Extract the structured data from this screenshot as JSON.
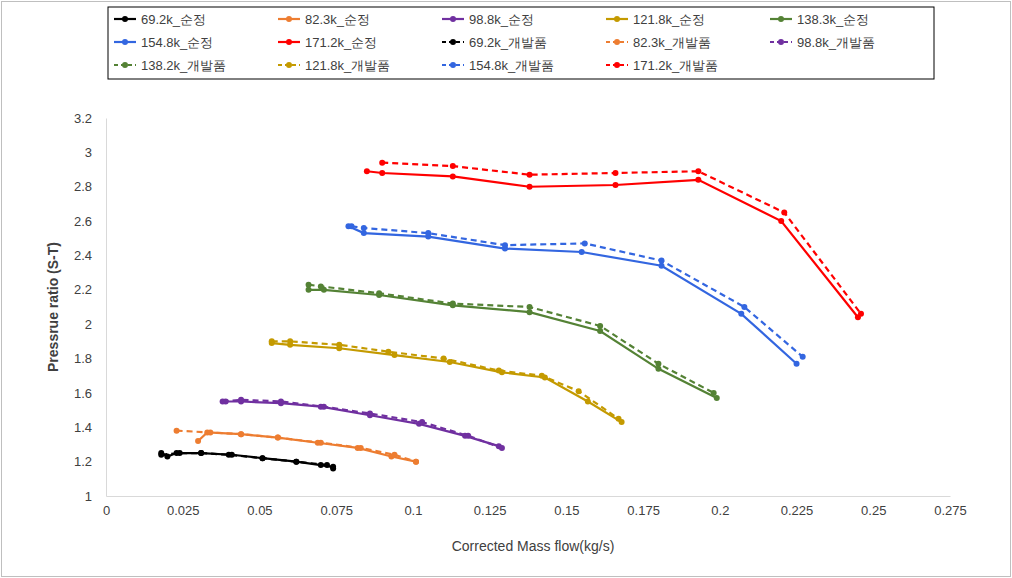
{
  "chart_data": {
    "type": "line",
    "x_label": "Corrected Mass flow(kg/s)",
    "y_label": "Pressrue ratio (S-T)",
    "xlim": [
      0,
      0.275
    ],
    "xticks": [
      0,
      0.025,
      0.05,
      0.075,
      0.1,
      0.125,
      0.15,
      0.175,
      0.2,
      0.225,
      0.25,
      0.275
    ],
    "ylim": [
      1,
      3.2
    ],
    "yticks": [
      1,
      1.2,
      1.4,
      1.6,
      1.8,
      2,
      2.2,
      2.4,
      2.6,
      2.8,
      3,
      3.2
    ],
    "grid": false,
    "legend": "top",
    "marker": "circle",
    "series": [
      {
        "name": "69.2k_순정",
        "color": "#000000",
        "line_style": "solid",
        "x": [
          0.018,
          0.02,
          0.023,
          0.031,
          0.041,
          0.051,
          0.062,
          0.07,
          0.074
        ],
        "values": [
          1.25,
          1.23,
          1.25,
          1.25,
          1.24,
          1.22,
          1.2,
          1.18,
          1.17
        ]
      },
      {
        "name": "82.3k_순정",
        "color": "#ed7d31",
        "line_style": "solid",
        "x": [
          0.03,
          0.033,
          0.044,
          0.056,
          0.069,
          0.082,
          0.093,
          0.101
        ],
        "values": [
          1.32,
          1.37,
          1.36,
          1.34,
          1.31,
          1.28,
          1.23,
          1.2
        ]
      },
      {
        "name": "98.8k_순정",
        "color": "#7030a0",
        "line_style": "solid",
        "x": [
          0.039,
          0.044,
          0.057,
          0.07,
          0.086,
          0.102,
          0.117,
          0.128
        ],
        "values": [
          1.55,
          1.55,
          1.54,
          1.52,
          1.47,
          1.42,
          1.35,
          1.29
        ]
      },
      {
        "name": "121.8k_순정",
        "color": "#c49a00",
        "line_style": "solid",
        "x": [
          0.054,
          0.06,
          0.076,
          0.094,
          0.112,
          0.129,
          0.143,
          0.157,
          0.168
        ],
        "values": [
          1.89,
          1.88,
          1.86,
          1.82,
          1.78,
          1.72,
          1.69,
          1.55,
          1.43
        ]
      },
      {
        "name": "138.3k_순정",
        "color": "#548235",
        "line_style": "solid",
        "x": [
          0.066,
          0.071,
          0.089,
          0.113,
          0.138,
          0.161,
          0.18,
          0.199
        ],
        "values": [
          2.2,
          2.2,
          2.17,
          2.11,
          2.07,
          1.96,
          1.74,
          1.57
        ]
      },
      {
        "name": "154.8k_순정",
        "color": "#3366e0",
        "line_style": "solid",
        "x": [
          0.079,
          0.084,
          0.105,
          0.13,
          0.155,
          0.181,
          0.207,
          0.225
        ],
        "values": [
          2.57,
          2.53,
          2.51,
          2.44,
          2.42,
          2.34,
          2.06,
          1.77
        ]
      },
      {
        "name": "171.2k_순정",
        "color": "#ff0000",
        "line_style": "solid",
        "x": [
          0.085,
          0.09,
          0.113,
          0.138,
          0.166,
          0.193,
          0.22,
          0.245
        ],
        "values": [
          2.89,
          2.88,
          2.86,
          2.8,
          2.81,
          2.84,
          2.6,
          2.04
        ]
      },
      {
        "name": "69.2k_개발품",
        "color": "#000000",
        "line_style": "dashed",
        "x": [
          0.018,
          0.024,
          0.031,
          0.04,
          0.051,
          0.062,
          0.072,
          0.074
        ],
        "values": [
          1.24,
          1.25,
          1.25,
          1.24,
          1.22,
          1.2,
          1.18,
          1.16
        ]
      },
      {
        "name": "82.3k_개발품",
        "color": "#ed7d31",
        "line_style": "dashed",
        "x": [
          0.023,
          0.034,
          0.044,
          0.056,
          0.07,
          0.083,
          0.094,
          0.101
        ],
        "values": [
          1.38,
          1.37,
          1.36,
          1.34,
          1.31,
          1.28,
          1.24,
          1.2
        ]
      },
      {
        "name": "98.8k_개발품",
        "color": "#7030a0",
        "line_style": "dashed",
        "x": [
          0.038,
          0.044,
          0.057,
          0.071,
          0.086,
          0.103,
          0.118,
          0.129
        ],
        "values": [
          1.55,
          1.56,
          1.55,
          1.52,
          1.48,
          1.43,
          1.35,
          1.28
        ]
      },
      {
        "name": "138.2k_개발품",
        "color": "#548235",
        "line_style": "dashed",
        "x": [
          0.066,
          0.07,
          0.089,
          0.113,
          0.138,
          0.161,
          0.18,
          0.198
        ],
        "values": [
          2.23,
          2.22,
          2.18,
          2.12,
          2.1,
          1.99,
          1.77,
          1.6
        ]
      },
      {
        "name": "121.8k_개발품",
        "color": "#c49a00",
        "line_style": "dashed",
        "x": [
          0.054,
          0.06,
          0.076,
          0.092,
          0.11,
          0.128,
          0.142,
          0.154,
          0.167
        ],
        "values": [
          1.9,
          1.9,
          1.88,
          1.84,
          1.8,
          1.73,
          1.7,
          1.61,
          1.45
        ]
      },
      {
        "name": "154.8k_개발품",
        "color": "#3366e0",
        "line_style": "dashed",
        "x": [
          0.08,
          0.084,
          0.105,
          0.13,
          0.156,
          0.181,
          0.208,
          0.227
        ],
        "values": [
          2.57,
          2.56,
          2.53,
          2.46,
          2.47,
          2.37,
          2.1,
          1.81
        ]
      },
      {
        "name": "171.2k_개발품",
        "color": "#ff0000",
        "line_style": "dashed",
        "x": [
          0.09,
          0.113,
          0.138,
          0.166,
          0.193,
          0.221,
          0.246
        ],
        "values": [
          2.94,
          2.92,
          2.87,
          2.88,
          2.89,
          2.65,
          2.06
        ]
      }
    ]
  }
}
